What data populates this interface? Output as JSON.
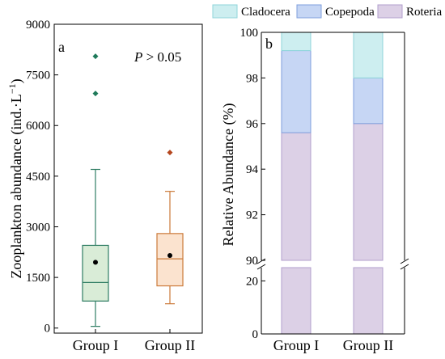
{
  "chart_data": [
    {
      "type": "box",
      "panel_label": "a",
      "annotation": {
        "italic": "P",
        "rest": " > 0.05"
      },
      "ylabel_main": "Zooplankton abundance (ind.·L",
      "ylabel_sup": "−1",
      "ylabel_end": ")",
      "ylim": [
        -150,
        9000
      ],
      "yticks": [
        0,
        1500,
        3000,
        4500,
        6000,
        7500,
        9000
      ],
      "categories": [
        "Group I",
        "Group II"
      ],
      "groups": [
        {
          "name": "Group I",
          "whisker_low": 50,
          "q1": 800,
          "median": 1350,
          "q3": 2450,
          "whisker_high": 4700,
          "mean": 1950,
          "outliers": [
            6950,
            8050
          ],
          "color": "#2f7d63",
          "fill": "#d9ecd7",
          "outlier_color": "#1f7a5a"
        },
        {
          "name": "Group II",
          "whisker_low": 720,
          "q1": 1250,
          "median": 2050,
          "q3": 2800,
          "whisker_high": 4050,
          "mean": 2150,
          "outliers": [
            5200
          ],
          "color": "#cc7a3a",
          "fill": "#fbe3cf",
          "outlier_color": "#b5471f"
        }
      ]
    },
    {
      "type": "bar",
      "stacked": true,
      "broken_axis": true,
      "panel_label": "b",
      "ylabel": "Relative Abundance (%)",
      "categories": [
        "Group I",
        "Group II"
      ],
      "yticks_upper": [
        90,
        92,
        94,
        96,
        98,
        100
      ],
      "yticks_lower": [
        0,
        20
      ],
      "ylim_upper": [
        90,
        100
      ],
      "ylim_lower": [
        0,
        25
      ],
      "legend_position": "top",
      "series": [
        {
          "name": "Roteria",
          "values": [
            95.6,
            96.0
          ],
          "color": "#dcd0e6",
          "edge": "#b29fcc"
        },
        {
          "name": "Copepoda",
          "values": [
            3.6,
            2.0
          ],
          "color": "#c6d6f4",
          "edge": "#7f9fdc"
        },
        {
          "name": "Cladocera",
          "values": [
            0.8,
            2.0
          ],
          "color": "#cdeef0",
          "edge": "#8fd4da"
        }
      ],
      "legend": [
        "Cladocera",
        "Copepoda",
        "Roteria"
      ]
    }
  ]
}
